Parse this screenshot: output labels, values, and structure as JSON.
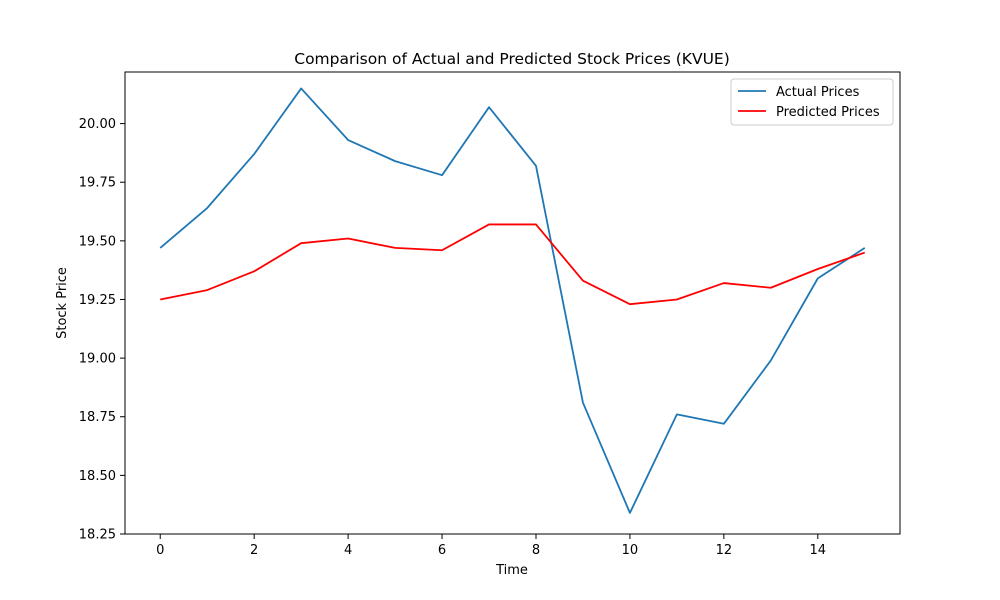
{
  "chart_data": {
    "type": "line",
    "title": "Comparison of Actual and Predicted Stock Prices (KVUE)",
    "xlabel": "Time",
    "ylabel": "Stock Price",
    "xlim": [
      -0.75,
      15.75
    ],
    "ylim": [
      18.25,
      20.22
    ],
    "xticks": [
      0,
      2,
      4,
      6,
      8,
      10,
      12,
      14
    ],
    "xtick_labels": [
      "0",
      "2",
      "4",
      "6",
      "8",
      "10",
      "12",
      "14"
    ],
    "yticks": [
      18.25,
      18.5,
      18.75,
      19.0,
      19.25,
      19.5,
      19.75,
      20.0
    ],
    "ytick_labels": [
      "18.25",
      "18.50",
      "18.75",
      "19.00",
      "19.25",
      "19.50",
      "19.75",
      "20.00"
    ],
    "grid": false,
    "legend_position": "top-right",
    "x": [
      0,
      1,
      2,
      3,
      4,
      5,
      6,
      7,
      8,
      9,
      10,
      11,
      12,
      13,
      14,
      15
    ],
    "series": [
      {
        "name": "Actual Prices",
        "color": "#1f77b4",
        "values": [
          19.47,
          19.64,
          19.87,
          20.15,
          19.93,
          19.84,
          19.78,
          20.07,
          19.82,
          18.81,
          18.34,
          18.76,
          18.72,
          18.99,
          19.34,
          19.47
        ]
      },
      {
        "name": "Predicted Prices",
        "color": "#ff0000",
        "values": [
          19.25,
          19.29,
          19.37,
          19.49,
          19.51,
          19.47,
          19.46,
          19.57,
          19.57,
          19.33,
          19.23,
          19.25,
          19.32,
          19.3,
          19.38,
          19.45
        ]
      }
    ]
  }
}
